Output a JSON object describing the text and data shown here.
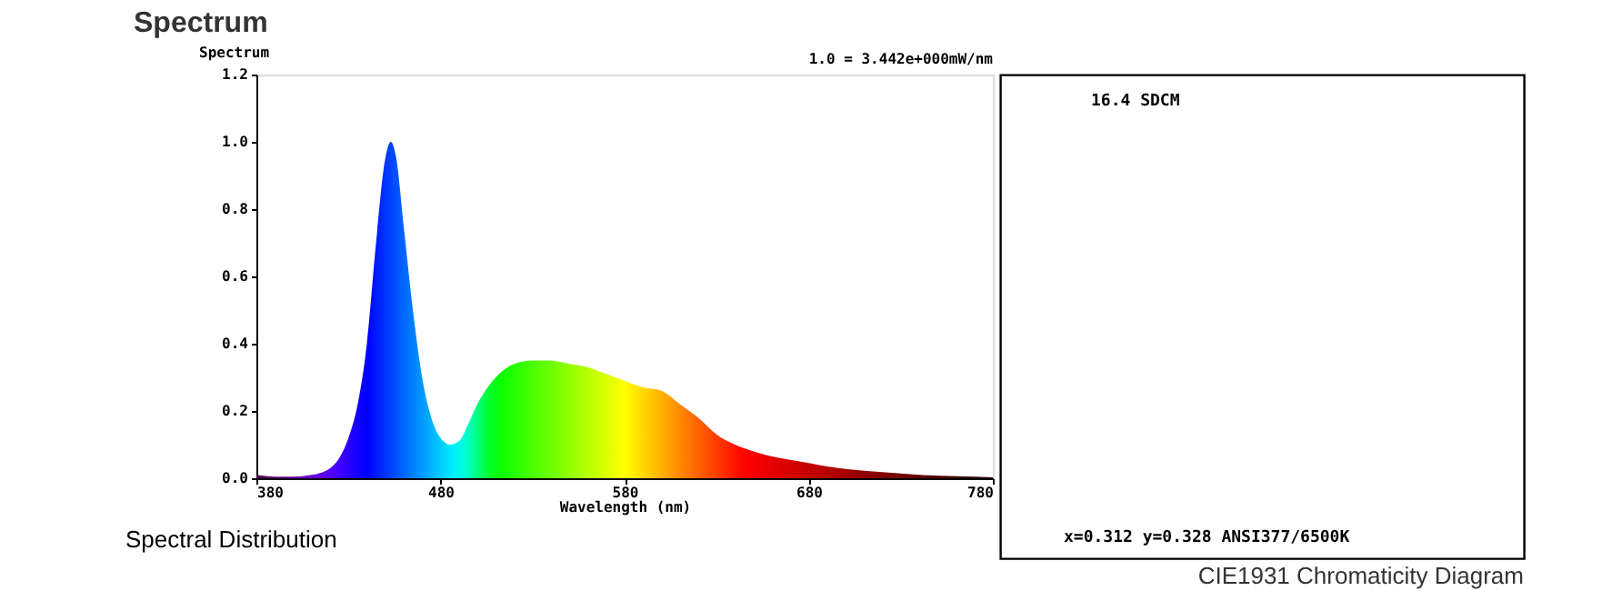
{
  "chart_data": [
    {
      "type": "area",
      "title": "Spectrum",
      "xlabel": "Wavelength (nm)",
      "ylabel": "Spectrum",
      "annotations": [
        "1.0 = 3.442e+000mW/nm",
        "Spectral Distribution"
      ],
      "xlim": [
        380,
        780
      ],
      "xticks": [
        380,
        480,
        580,
        680,
        780
      ],
      "ylim": [
        0,
        1.2
      ],
      "yticks": [
        {
          "value": 0,
          "label": "0.0"
        },
        0.2,
        0.4,
        0.6,
        0.8,
        {
          "value": 1,
          "label": "1.0"
        },
        1.2
      ],
      "grid": false,
      "series": [
        {
          "x": [
            380,
            390,
            400,
            410,
            420,
            425,
            430,
            435,
            440,
            445,
            450,
            453,
            456,
            460,
            465,
            470,
            475,
            480,
            485,
            490,
            495,
            500,
            510,
            520,
            530,
            540,
            550,
            560,
            570,
            580,
            590,
            600,
            610,
            620,
            630,
            640,
            650,
            660,
            670,
            680,
            690,
            700,
            720,
            740,
            760,
            780
          ],
          "values": [
            0.01,
            0.005,
            0.005,
            0.01,
            0.03,
            0.06,
            0.12,
            0.22,
            0.4,
            0.7,
            0.95,
            1.0,
            0.95,
            0.75,
            0.5,
            0.3,
            0.18,
            0.12,
            0.1,
            0.11,
            0.16,
            0.22,
            0.3,
            0.34,
            0.35,
            0.35,
            0.34,
            0.33,
            0.31,
            0.29,
            0.27,
            0.26,
            0.22,
            0.18,
            0.13,
            0.1,
            0.08,
            0.065,
            0.055,
            0.045,
            0.035,
            0.028,
            0.018,
            0.01,
            0.006,
            0.003
          ]
        }
      ]
    },
    {
      "type": "other",
      "title": "CIE1931 Chromaticity Diagram",
      "annotations": [
        "16.4 SDCM",
        "x=0.312 y=0.328 ANSI377/6500K"
      ]
    }
  ]
}
